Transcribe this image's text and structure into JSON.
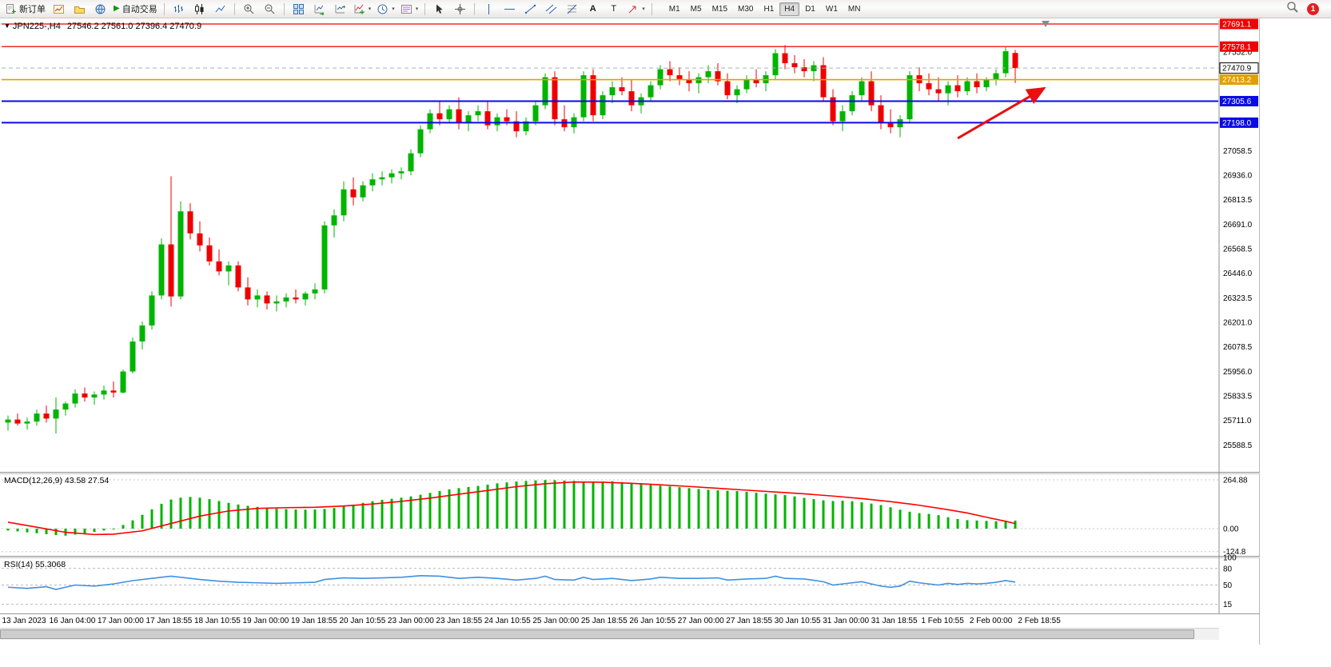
{
  "app": {
    "notification_count": "1"
  },
  "toolbar": {
    "new_order_label": "新订单",
    "autotrading_label": "自动交易",
    "timeframes": [
      "M1",
      "M5",
      "M15",
      "M30",
      "H1",
      "H4",
      "D1",
      "W1",
      "MN"
    ],
    "active_timeframe": "H4"
  },
  "chart": {
    "title_symbol": "JPN225-,H4",
    "title_ohlc": "27546.2 27561.0 27396.4 27470.9",
    "macd_title": "MACD(12,26,9) 43.58 27.54",
    "rsi_title": "RSI(14) 55.3068",
    "colors": {
      "candle_up": "#00b400",
      "candle_down": "#ee0000",
      "macd_hist": "#00b400",
      "macd_signal": "#ff0000",
      "rsi": "#4090e0",
      "axis_text": "#000000"
    }
  },
  "chart_data": {
    "type": "candlestick",
    "symbol": "JPN225-",
    "timeframe": "H4",
    "current_bar": {
      "open": 27546.2,
      "high": 27561.0,
      "low": 27396.4,
      "close": 27470.9
    },
    "price_axis_ticks": [
      27552.0,
      27058.5,
      26936.0,
      26813.5,
      26691.0,
      26568.5,
      26446.0,
      26323.5,
      26201.0,
      26078.5,
      25956.0,
      25833.5,
      25711.0,
      25588.5
    ],
    "time_axis_labels": [
      "13 Jan 2023",
      "16 Jan 04:00",
      "17 Jan 00:00",
      "17 Jan 18:55",
      "18 Jan 10:55",
      "19 Jan 00:00",
      "19 Jan 18:55",
      "20 Jan 10:55",
      "23 Jan 00:00",
      "23 Jan 18:55",
      "24 Jan 10:55",
      "25 Jan 00:00",
      "25 Jan 18:55",
      "26 Jan 10:55",
      "27 Jan 00:00",
      "27 Jan 18:55",
      "30 Jan 10:55",
      "31 Jan 00:00",
      "31 Jan 18:55",
      "1 Feb 10:55",
      "2 Feb 00:00",
      "2 Feb 18:55"
    ],
    "horizontal_lines": [
      {
        "label": "27691.1",
        "price": 27691.1,
        "color": "#f00000",
        "width": 1.3
      },
      {
        "label": "27578.1",
        "price": 27578.1,
        "color": "#f00000",
        "width": 1.3
      },
      {
        "label": "27413.2",
        "price": 27413.2,
        "color": "#e0a000",
        "width": 1.6
      },
      {
        "label": "27305.6",
        "price": 27305.6,
        "color": "#0a0ae6",
        "width": 2
      },
      {
        "label": "27198.0",
        "price": 27198.0,
        "color": "#0a0ae6",
        "width": 2
      }
    ],
    "bid_line": {
      "label": "27470.9",
      "price": 27470.9
    },
    "trend_arrow": {
      "from_bar": 99,
      "from_price": 27120,
      "to_bar": 108,
      "to_price": 27370,
      "color": "#e81010"
    },
    "candles_ohlc": [
      [
        25700,
        25735,
        25660,
        25715
      ],
      [
        25715,
        25745,
        25685,
        25695
      ],
      [
        25695,
        25725,
        25665,
        25705
      ],
      [
        25705,
        25765,
        25685,
        25745
      ],
      [
        25745,
        25785,
        25700,
        25720
      ],
      [
        25720,
        25825,
        25645,
        25765
      ],
      [
        25765,
        25805,
        25735,
        25795
      ],
      [
        25795,
        25865,
        25775,
        25845
      ],
      [
        25845,
        25875,
        25805,
        25825
      ],
      [
        25825,
        25855,
        25790,
        25840
      ],
      [
        25840,
        25885,
        25815,
        25860
      ],
      [
        25860,
        25905,
        25825,
        25850
      ],
      [
        25850,
        25965,
        25845,
        25955
      ],
      [
        25955,
        26125,
        25945,
        26105
      ],
      [
        26105,
        26205,
        26065,
        26185
      ],
      [
        26185,
        26355,
        26165,
        26335
      ],
      [
        26335,
        26620,
        26315,
        26590
      ],
      [
        26590,
        26930,
        26280,
        26330
      ],
      [
        26330,
        26805,
        26315,
        26755
      ],
      [
        26755,
        26795,
        26615,
        26645
      ],
      [
        26645,
        26705,
        26555,
        26585
      ],
      [
        26585,
        26625,
        26485,
        26505
      ],
      [
        26505,
        26565,
        26435,
        26455
      ],
      [
        26455,
        26505,
        26385,
        26485
      ],
      [
        26485,
        26505,
        26355,
        26375
      ],
      [
        26375,
        26425,
        26285,
        26315
      ],
      [
        26315,
        26365,
        26275,
        26335
      ],
      [
        26335,
        26355,
        26265,
        26295
      ],
      [
        26295,
        26335,
        26255,
        26305
      ],
      [
        26305,
        26345,
        26275,
        26325
      ],
      [
        26325,
        26365,
        26295,
        26315
      ],
      [
        26315,
        26355,
        26285,
        26345
      ],
      [
        26345,
        26395,
        26315,
        26365
      ],
      [
        26365,
        26705,
        26345,
        26685
      ],
      [
        26685,
        26765,
        26625,
        26735
      ],
      [
        26735,
        26905,
        26705,
        26865
      ],
      [
        26865,
        26925,
        26785,
        26825
      ],
      [
        26825,
        26905,
        26805,
        26885
      ],
      [
        26885,
        26945,
        26855,
        26915
      ],
      [
        26915,
        26955,
        26885,
        26925
      ],
      [
        26925,
        26965,
        26895,
        26945
      ],
      [
        26945,
        26975,
        26915,
        26955
      ],
      [
        26955,
        27065,
        26935,
        27045
      ],
      [
        27045,
        27185,
        27025,
        27165
      ],
      [
        27165,
        27265,
        27145,
        27245
      ],
      [
        27245,
        27305,
        27185,
        27215
      ],
      [
        27215,
        27285,
        27195,
        27265
      ],
      [
        27265,
        27325,
        27165,
        27195
      ],
      [
        27195,
        27255,
        27155,
        27235
      ],
      [
        27235,
        27285,
        27205,
        27255
      ],
      [
        27255,
        27305,
        27165,
        27185
      ],
      [
        27185,
        27245,
        27155,
        27225
      ],
      [
        27225,
        27265,
        27185,
        27205
      ],
      [
        27205,
        27255,
        27125,
        27155
      ],
      [
        27155,
        27225,
        27135,
        27205
      ],
      [
        27205,
        27305,
        27185,
        27285
      ],
      [
        27285,
        27445,
        27265,
        27425
      ],
      [
        27425,
        27455,
        27185,
        27215
      ],
      [
        27215,
        27285,
        27155,
        27175
      ],
      [
        27175,
        27245,
        27145,
        27225
      ],
      [
        27225,
        27455,
        27205,
        27435
      ],
      [
        27435,
        27465,
        27205,
        27235
      ],
      [
        27235,
        27355,
        27215,
        27335
      ],
      [
        27335,
        27405,
        27295,
        27375
      ],
      [
        27375,
        27425,
        27335,
        27355
      ],
      [
        27355,
        27415,
        27255,
        27285
      ],
      [
        27285,
        27345,
        27245,
        27325
      ],
      [
        27325,
        27405,
        27305,
        27385
      ],
      [
        27385,
        27485,
        27365,
        27465
      ],
      [
        27465,
        27505,
        27405,
        27435
      ],
      [
        27435,
        27475,
        27385,
        27415
      ],
      [
        27415,
        27455,
        27355,
        27395
      ],
      [
        27395,
        27445,
        27345,
        27425
      ],
      [
        27425,
        27485,
        27395,
        27455
      ],
      [
        27455,
        27495,
        27385,
        27405
      ],
      [
        27405,
        27445,
        27315,
        27335
      ],
      [
        27335,
        27385,
        27295,
        27365
      ],
      [
        27365,
        27435,
        27345,
        27415
      ],
      [
        27415,
        27465,
        27375,
        27395
      ],
      [
        27395,
        27455,
        27355,
        27435
      ],
      [
        27435,
        27565,
        27415,
        27545
      ],
      [
        27545,
        27585,
        27465,
        27495
      ],
      [
        27495,
        27535,
        27445,
        27475
      ],
      [
        27475,
        27515,
        27425,
        27455
      ],
      [
        27455,
        27505,
        27405,
        27485
      ],
      [
        27485,
        27525,
        27305,
        27325
      ],
      [
        27325,
        27365,
        27185,
        27205
      ],
      [
        27205,
        27285,
        27155,
        27255
      ],
      [
        27255,
        27355,
        27235,
        27335
      ],
      [
        27335,
        27425,
        27305,
        27405
      ],
      [
        27405,
        27455,
        27255,
        27285
      ],
      [
        27285,
        27335,
        27165,
        27195
      ],
      [
        27195,
        27265,
        27145,
        27175
      ],
      [
        27175,
        27235,
        27125,
        27215
      ],
      [
        27215,
        27455,
        27195,
        27435
      ],
      [
        27435,
        27475,
        27355,
        27395
      ],
      [
        27395,
        27445,
        27335,
        27365
      ],
      [
        27365,
        27425,
        27305,
        27345
      ],
      [
        27345,
        27405,
        27285,
        27385
      ],
      [
        27385,
        27435,
        27325,
        27355
      ],
      [
        27355,
        27425,
        27335,
        27405
      ],
      [
        27405,
        27445,
        27345,
        27375
      ],
      [
        27375,
        27425,
        27355,
        27415
      ],
      [
        27415,
        27465,
        27385,
        27445
      ],
      [
        27445,
        27575,
        27425,
        27555
      ],
      [
        27546.2,
        27561.0,
        27396.4,
        27470.9
      ]
    ],
    "macd": {
      "title": "MACD(12,26,9) 43.58 27.54",
      "fast": 12,
      "slow": 26,
      "signal": 9,
      "current_macd": 43.58,
      "current_signal": 27.54,
      "axis_ticks": [
        [
          264.88,
          "264.88"
        ],
        [
          0,
          "0.00"
        ],
        [
          -124.8,
          "-124.8"
        ]
      ],
      "histogram": [
        -10,
        -15,
        -20,
        -25,
        -30,
        -35,
        -38,
        -32,
        -26,
        -18,
        -10,
        0,
        20,
        45,
        75,
        105,
        135,
        158,
        168,
        172,
        168,
        160,
        150,
        140,
        131,
        124,
        118,
        113,
        109,
        106,
        104,
        103,
        104,
        107,
        112,
        120,
        130,
        140,
        149,
        156,
        162,
        168,
        175,
        184,
        194,
        204,
        213,
        220,
        226,
        232,
        239,
        246,
        251,
        256,
        259,
        262,
        264,
        263,
        261,
        259,
        256,
        254,
        255,
        257,
        253,
        247,
        241,
        237,
        233,
        229,
        225,
        220,
        215,
        211,
        208,
        206,
        204,
        200,
        195,
        190,
        186,
        182,
        175,
        167,
        160,
        154,
        150,
        152,
        149,
        143,
        136,
        128,
        116,
        103,
        92,
        84,
        80,
        73,
        62,
        52,
        46,
        44,
        42,
        40,
        42,
        43.58
      ],
      "signal_line_points": [
        [
          0,
          35
        ],
        [
          3,
          8
        ],
        [
          6,
          -20
        ],
        [
          9,
          -32
        ],
        [
          11,
          -30
        ],
        [
          14,
          -12
        ],
        [
          17,
          28
        ],
        [
          20,
          68
        ],
        [
          23,
          96
        ],
        [
          26,
          110
        ],
        [
          29,
          114
        ],
        [
          32,
          116
        ],
        [
          35,
          123
        ],
        [
          38,
          134
        ],
        [
          41,
          148
        ],
        [
          44,
          166
        ],
        [
          47,
          187
        ],
        [
          50,
          207
        ],
        [
          53,
          228
        ],
        [
          56,
          244
        ],
        [
          59,
          253
        ],
        [
          62,
          252
        ],
        [
          65,
          246
        ],
        [
          68,
          238
        ],
        [
          71,
          229
        ],
        [
          74,
          219
        ],
        [
          77,
          209
        ],
        [
          80,
          199
        ],
        [
          83,
          189
        ],
        [
          86,
          177
        ],
        [
          89,
          163
        ],
        [
          92,
          147
        ],
        [
          95,
          127
        ],
        [
          98,
          103
        ],
        [
          100,
          85
        ],
        [
          102,
          62
        ],
        [
          104,
          40
        ],
        [
          105,
          27.54
        ]
      ]
    },
    "rsi": {
      "title": "RSI(14) 55.3068",
      "period": 14,
      "current": 55.3068,
      "level_lines": [
        80,
        50,
        15
      ],
      "axis_ticks": [
        [
          100,
          "100"
        ],
        [
          80,
          "80"
        ],
        [
          50,
          "50"
        ],
        [
          15,
          "15"
        ]
      ],
      "line_points": [
        [
          0,
          46
        ],
        [
          2,
          44
        ],
        [
          4,
          47
        ],
        [
          5,
          42
        ],
        [
          7,
          50
        ],
        [
          9,
          48
        ],
        [
          11,
          52
        ],
        [
          13,
          58
        ],
        [
          15,
          62
        ],
        [
          17,
          66
        ],
        [
          18,
          64
        ],
        [
          20,
          60
        ],
        [
          22,
          57
        ],
        [
          24,
          55
        ],
        [
          26,
          54
        ],
        [
          28,
          53
        ],
        [
          30,
          54
        ],
        [
          32,
          55
        ],
        [
          33,
          60
        ],
        [
          35,
          63
        ],
        [
          37,
          62
        ],
        [
          39,
          63
        ],
        [
          41,
          64
        ],
        [
          43,
          67
        ],
        [
          45,
          66
        ],
        [
          47,
          62
        ],
        [
          49,
          64
        ],
        [
          51,
          62
        ],
        [
          53,
          59
        ],
        [
          55,
          62
        ],
        [
          56,
          66
        ],
        [
          57,
          60
        ],
        [
          59,
          59
        ],
        [
          60,
          64
        ],
        [
          61,
          60
        ],
        [
          63,
          62
        ],
        [
          65,
          58
        ],
        [
          67,
          61
        ],
        [
          68,
          64
        ],
        [
          70,
          62
        ],
        [
          72,
          62
        ],
        [
          74,
          63
        ],
        [
          75,
          59
        ],
        [
          77,
          61
        ],
        [
          79,
          62
        ],
        [
          80,
          66
        ],
        [
          81,
          62
        ],
        [
          83,
          61
        ],
        [
          85,
          56
        ],
        [
          86,
          50
        ],
        [
          87,
          52
        ],
        [
          89,
          56
        ],
        [
          90,
          52
        ],
        [
          91,
          48
        ],
        [
          92,
          46
        ],
        [
          93,
          48
        ],
        [
          94,
          57
        ],
        [
          95,
          54
        ],
        [
          96,
          52
        ],
        [
          97,
          50
        ],
        [
          98,
          53
        ],
        [
          99,
          51
        ],
        [
          100,
          53
        ],
        [
          101,
          52
        ],
        [
          102,
          53
        ],
        [
          103,
          55
        ],
        [
          104,
          58
        ],
        [
          105,
          55.3
        ]
      ]
    }
  }
}
